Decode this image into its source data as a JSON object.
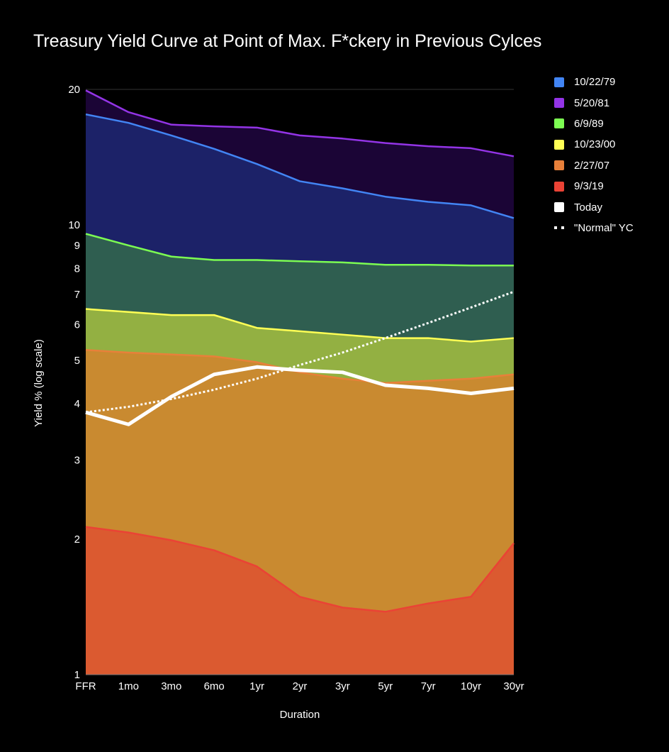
{
  "chart_data": {
    "type": "area",
    "title": "Treasury Yield Curve at Point of Max. F*ckery in Previous Cylces",
    "xlabel": "Duration",
    "ylabel": "Yield % (log scale)",
    "yscale": "log",
    "ylim": [
      1,
      20
    ],
    "yticks": [
      1,
      2,
      3,
      4,
      5,
      6,
      7,
      8,
      9,
      10,
      20
    ],
    "categories": [
      "FFR",
      "1mo",
      "3mo",
      "6mo",
      "1yr",
      "2yr",
      "3yr",
      "5yr",
      "7yr",
      "10yr",
      "30yr"
    ],
    "series": [
      {
        "name": "5/20/81",
        "color": "#9334e6",
        "fill": "#1b0536",
        "values": [
          19.9,
          17.8,
          16.7,
          16.55,
          16.45,
          15.8,
          15.55,
          15.2,
          14.95,
          14.8,
          14.2
        ]
      },
      {
        "name": "10/22/79",
        "color": "#4285f4",
        "fill": "#1c2268",
        "values": [
          17.6,
          16.85,
          15.8,
          14.75,
          13.65,
          12.5,
          12.05,
          11.55,
          11.25,
          11.05,
          10.35
        ]
      },
      {
        "name": "6/9/89",
        "color": "#7cfc52",
        "fill": "#2f5e50",
        "values": [
          9.55,
          9.0,
          8.5,
          8.35,
          8.35,
          8.3,
          8.25,
          8.15,
          8.15,
          8.12,
          8.12
        ]
      },
      {
        "name": "10/23/00",
        "color": "#ffff55",
        "fill": "#93b042",
        "values": [
          6.5,
          6.4,
          6.3,
          6.3,
          5.9,
          5.8,
          5.7,
          5.6,
          5.6,
          5.5,
          5.6
        ]
      },
      {
        "name": "2/27/07",
        "color": "#e8803a",
        "fill": "#c98a30",
        "values": [
          5.27,
          5.2,
          5.15,
          5.1,
          4.95,
          4.7,
          4.55,
          4.45,
          4.5,
          4.55,
          4.65
        ]
      },
      {
        "name": "9/3/19",
        "color": "#ea4335",
        "fill": "#db5a30",
        "values": [
          2.13,
          2.07,
          1.99,
          1.89,
          1.74,
          1.49,
          1.41,
          1.38,
          1.44,
          1.49,
          1.96
        ]
      },
      {
        "name": "Today",
        "color": "#ffffff",
        "fill": null,
        "values": [
          3.83,
          3.6,
          4.15,
          4.65,
          4.83,
          4.75,
          4.7,
          4.4,
          4.33,
          4.22,
          4.33
        ]
      },
      {
        "name": "\"Normal\" YC",
        "color": "#ffffff",
        "fill": null,
        "dashed": true,
        "values": [
          3.83,
          3.94,
          4.1,
          4.3,
          4.55,
          4.88,
          5.2,
          5.6,
          6.05,
          6.55,
          7.1
        ]
      }
    ],
    "legend_position": "right",
    "grid": true
  },
  "legend": {
    "items": [
      {
        "label": "10/22/79",
        "color": "#4285f4"
      },
      {
        "label": "5/20/81",
        "color": "#9334e6"
      },
      {
        "label": "6/9/89",
        "color": "#7cfc52"
      },
      {
        "label": "10/23/00",
        "color": "#ffff55"
      },
      {
        "label": "2/27/07",
        "color": "#e8803a"
      },
      {
        "label": "9/3/19",
        "color": "#ea4335"
      },
      {
        "label": "Today",
        "color": "#ffffff"
      },
      {
        "label": "\"Normal\" YC",
        "color": "#ffffff"
      }
    ]
  }
}
